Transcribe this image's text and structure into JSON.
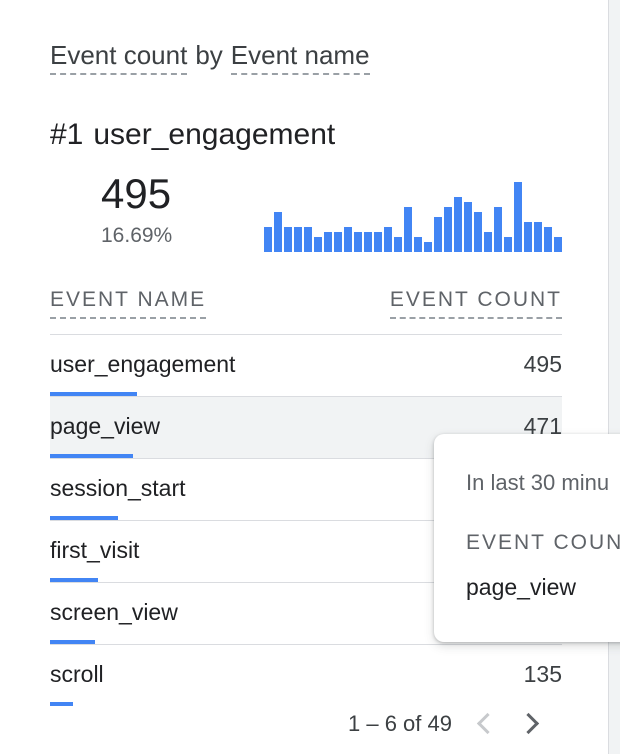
{
  "card": {
    "title_metric": "Event count",
    "title_by": "by",
    "title_dimension": "Event name"
  },
  "top_item": {
    "rank": "#1",
    "name": "user_engagement",
    "value": "495",
    "percent": "16.69%"
  },
  "sparkline": {
    "color": "#4285f4",
    "values": [
      5,
      8,
      5,
      5,
      5,
      3,
      4,
      4,
      5,
      4,
      4,
      4,
      5,
      3,
      9,
      3,
      2,
      7,
      9,
      11,
      10,
      8,
      4,
      9,
      3,
      14,
      6,
      6,
      5,
      3,
      1
    ]
  },
  "table": {
    "col_name": "EVENT NAME",
    "col_count": "EVENT COUNT",
    "accent_color": "#4285f4",
    "rows": [
      {
        "name": "user_engagement",
        "count": "495",
        "bar_fraction": 1.0
      },
      {
        "name": "page_view",
        "count": "471",
        "bar_fraction": 0.95
      },
      {
        "name": "session_start",
        "count": "",
        "bar_fraction": 0.78
      },
      {
        "name": "first_visit",
        "count": "",
        "bar_fraction": 0.55
      },
      {
        "name": "screen_view",
        "count": "",
        "bar_fraction": 0.52
      },
      {
        "name": "scroll",
        "count": "135",
        "bar_fraction": 0.27
      }
    ]
  },
  "pagination": {
    "range": "1 – 6 of 49"
  },
  "tooltip": {
    "period": "In last 30 minu",
    "header": "EVENT COUNT",
    "event": "page_view"
  }
}
